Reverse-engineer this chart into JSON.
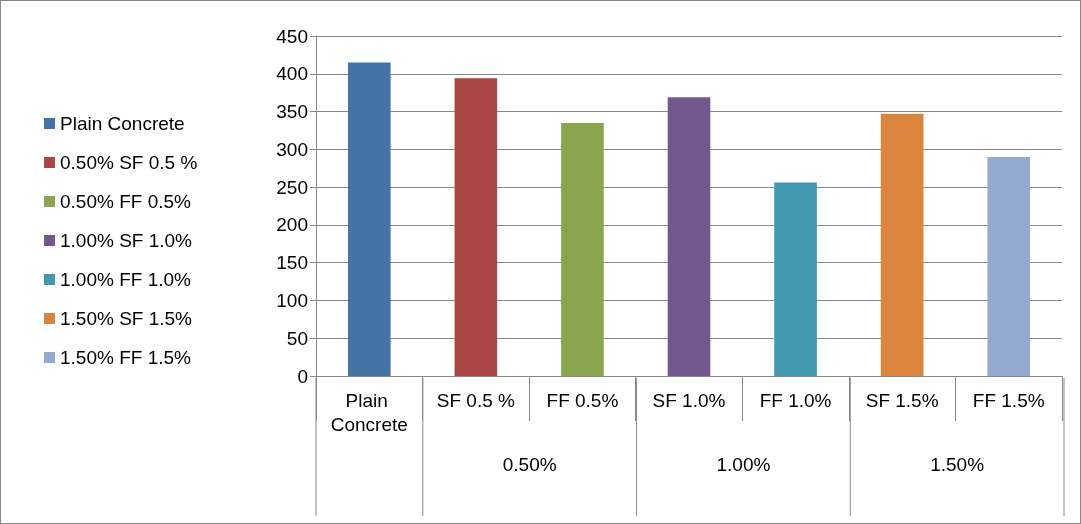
{
  "chart_data": {
    "type": "bar",
    "categories": [
      "Plain Concrete",
      "SF 0.5 %",
      "FF 0.5%",
      "SF 1.0%",
      "FF 1.0%",
      "SF 1.5%",
      "FF 1.5%"
    ],
    "series": [
      {
        "name": "Plain Concrete",
        "color": "#4572a7",
        "values": [
          415,
          null,
          null,
          null,
          null,
          null,
          null
        ]
      },
      {
        "name": "0.50% SF 0.5 %",
        "color": "#aa4643",
        "values": [
          null,
          394,
          null,
          null,
          null,
          null,
          null
        ]
      },
      {
        "name": "0.50% FF 0.5%",
        "color": "#89a54e",
        "values": [
          null,
          null,
          335,
          null,
          null,
          null,
          null
        ]
      },
      {
        "name": "1.00% SF 1.0%",
        "color": "#71588f",
        "values": [
          null,
          null,
          null,
          369,
          null,
          null,
          null
        ]
      },
      {
        "name": "1.00% FF 1.0%",
        "color": "#4198af",
        "values": [
          null,
          null,
          null,
          null,
          256,
          null,
          null
        ]
      },
      {
        "name": "1.50% SF 1.5%",
        "color": "#db843d",
        "values": [
          null,
          null,
          null,
          null,
          null,
          347,
          null
        ]
      },
      {
        "name": "1.50% FF 1.5%",
        "color": "#93a9cf",
        "values": [
          null,
          null,
          null,
          null,
          null,
          null,
          290
        ]
      }
    ],
    "annotations": [
      "0.50%",
      "1.00%",
      "1.50%"
    ],
    "ylim": [
      0,
      450
    ],
    "yticks": [
      0,
      50,
      100,
      150,
      200,
      250,
      300,
      350,
      400,
      450
    ],
    "grid": "y",
    "legend": "left"
  }
}
